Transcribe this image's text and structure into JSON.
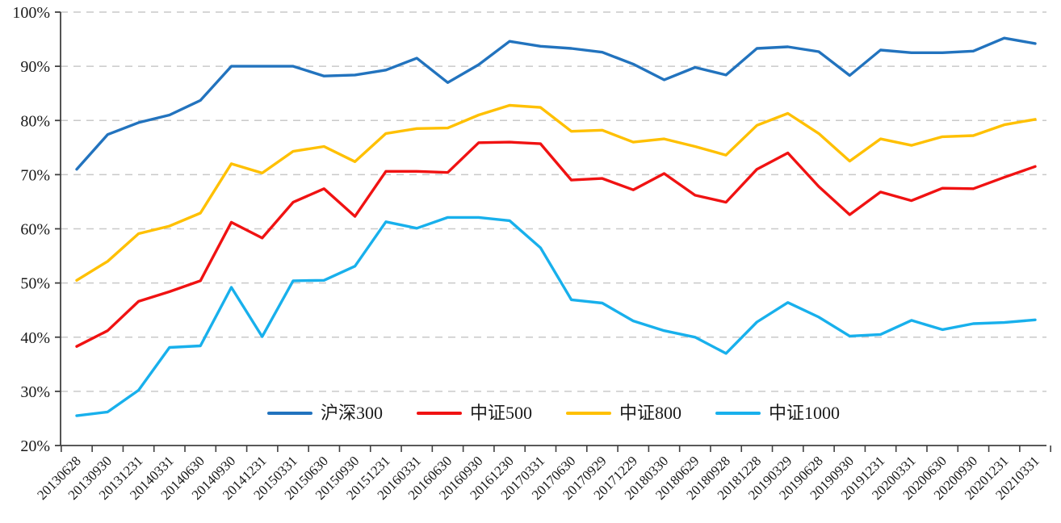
{
  "chart_data": {
    "type": "line",
    "title": "",
    "categories": [
      "20130628",
      "20130930",
      "20131231",
      "20140331",
      "20140630",
      "20140930",
      "20141231",
      "20150331",
      "20150630",
      "20150930",
      "20151231",
      "20160331",
      "20160630",
      "20160930",
      "20161230",
      "20170331",
      "20170630",
      "20170929",
      "20171229",
      "20180330",
      "20180629",
      "20180928",
      "20181228",
      "20190329",
      "20190628",
      "20190930",
      "20191231",
      "20200331",
      "20200630",
      "20200930",
      "20201231",
      "20210331"
    ],
    "series": [
      {
        "name": "沪深300",
        "color": "#2273BE",
        "values": [
          71.0,
          77.4,
          79.6,
          81.0,
          83.7,
          90.0,
          90.0,
          90.0,
          88.2,
          88.4,
          89.3,
          91.5,
          87.0,
          90.3,
          94.6,
          93.7,
          93.3,
          92.6,
          90.4,
          87.5,
          89.8,
          88.4,
          93.3,
          93.6,
          92.7,
          88.3,
          93.0,
          92.5,
          92.5,
          92.8,
          95.2,
          94.2
        ]
      },
      {
        "name": "中证500",
        "color": "#F01212",
        "values": [
          38.3,
          41.2,
          46.6,
          48.4,
          50.4,
          61.2,
          58.3,
          64.9,
          67.4,
          62.3,
          70.6,
          70.6,
          70.4,
          75.9,
          76.0,
          75.7,
          69.0,
          69.3,
          67.2,
          70.2,
          66.2,
          64.9,
          71.0,
          74.0,
          67.8,
          62.6,
          66.8,
          65.2,
          67.5,
          67.4,
          69.5,
          71.5
        ]
      },
      {
        "name": "中证800",
        "color": "#FFC000",
        "values": [
          50.5,
          54.0,
          59.1,
          60.5,
          62.9,
          72.0,
          70.3,
          74.3,
          75.2,
          72.4,
          77.6,
          78.5,
          78.6,
          81.0,
          82.8,
          82.4,
          78.0,
          78.2,
          76.0,
          76.6,
          75.2,
          73.6,
          79.1,
          81.3,
          77.6,
          72.5,
          76.6,
          75.4,
          77.0,
          77.2,
          79.2,
          80.2
        ]
      },
      {
        "name": "中证1000",
        "color": "#18B0EC",
        "values": [
          25.5,
          26.2,
          30.2,
          38.1,
          38.4,
          49.2,
          40.1,
          50.4,
          50.5,
          53.1,
          61.3,
          60.1,
          62.1,
          62.1,
          61.5,
          56.5,
          46.9,
          46.3,
          43.0,
          41.2,
          40.0,
          37.0,
          42.8,
          46.4,
          43.7,
          40.2,
          40.5,
          43.1,
          41.4,
          42.5,
          42.7,
          43.2
        ]
      }
    ],
    "y_ticks": [
      {
        "value": 100,
        "label": "100%"
      },
      {
        "value": 90,
        "label": "90%"
      },
      {
        "value": 80,
        "label": "80%"
      },
      {
        "value": 70,
        "label": "70%"
      },
      {
        "value": 60,
        "label": "60%"
      },
      {
        "value": 50,
        "label": "50%"
      },
      {
        "value": 40,
        "label": "40%"
      },
      {
        "value": 30,
        "label": "30%"
      },
      {
        "value": 20,
        "label": "20%"
      }
    ],
    "ylim": [
      20,
      100
    ],
    "xlabel": "",
    "ylabel": "",
    "x_label_rotation": -45,
    "grid": "horizontal-dashed",
    "grid_color": "#C9C9C9",
    "axis_color": "#404040",
    "legend_position": "bottom-center-inside"
  }
}
